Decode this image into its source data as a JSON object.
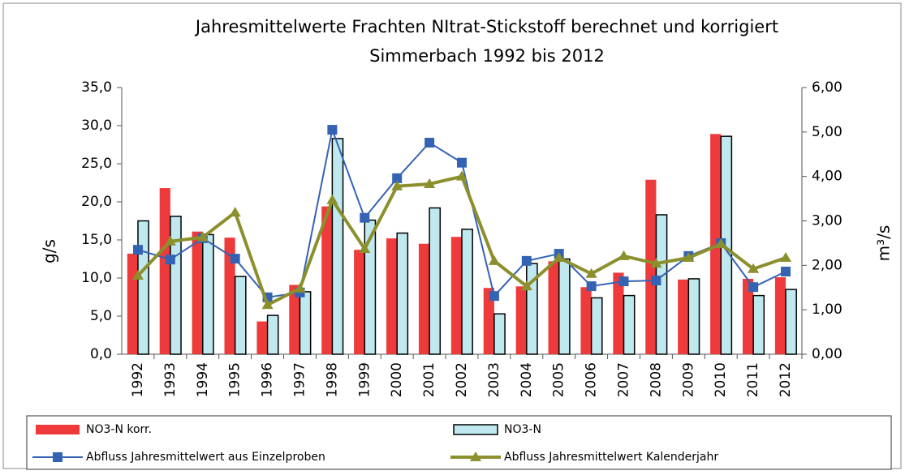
{
  "chart_data": {
    "type": "bar-line",
    "title": [
      "Jahresmittelwerte Frachten NItrat-Stickstoff berechnet und korrigiert",
      "Simmerbach 1992 bis 2012"
    ],
    "ylabel": "g/s",
    "y2label": "m³/s",
    "categories": [
      "1992",
      "1993",
      "1994",
      "1995",
      "1996",
      "1997",
      "1998",
      "1999",
      "2000",
      "2001",
      "2002",
      "2003",
      "2004",
      "2005",
      "2006",
      "2007",
      "2008",
      "2009",
      "2010",
      "2011",
      "2012"
    ],
    "series": [
      {
        "name": "NO3-N korr.",
        "kind": "bar",
        "color": "#ee3a3a",
        "values": [
          13.2,
          21.8,
          16.1,
          15.3,
          4.3,
          9.1,
          19.4,
          13.7,
          15.2,
          14.5,
          15.4,
          8.7,
          8.9,
          12.2,
          8.8,
          10.7,
          22.9,
          9.8,
          28.9,
          9.9,
          10.1
        ]
      },
      {
        "name": "NO3-N",
        "kind": "bar",
        "color": "#bfe9ee",
        "values": [
          17.5,
          18.1,
          15.7,
          10.2,
          5.1,
          8.2,
          28.3,
          17.6,
          15.9,
          19.2,
          16.4,
          5.3,
          11.9,
          12.5,
          7.4,
          7.7,
          18.3,
          9.9,
          28.6,
          7.7,
          8.5
        ]
      },
      {
        "name": "Abfluss Jahresmittelwert aus Einzelproben",
        "kind": "line",
        "marker": "square",
        "axis": "y2",
        "color": "#3463b4",
        "values": [
          2.35,
          2.13,
          2.61,
          2.15,
          1.28,
          1.39,
          5.05,
          3.07,
          3.96,
          4.76,
          4.31,
          1.31,
          2.1,
          2.26,
          1.53,
          1.64,
          1.66,
          2.21,
          2.5,
          1.51,
          1.86
        ]
      },
      {
        "name": "Abfluss Jahresmittelwert Kalenderjahr",
        "kind": "line",
        "marker": "triangle",
        "axis": "y2",
        "color": "#8b8f2c",
        "values": [
          1.77,
          2.54,
          2.63,
          3.19,
          1.11,
          1.48,
          3.47,
          2.37,
          3.78,
          3.83,
          4.0,
          2.1,
          1.53,
          2.17,
          1.81,
          2.21,
          2.04,
          2.17,
          2.48,
          1.92,
          2.17
        ]
      }
    ],
    "ylim": [
      0,
      35
    ],
    "yticks": [
      {
        "value": 0,
        "label": "0,0"
      },
      {
        "value": 5,
        "label": "5,0"
      },
      {
        "value": 10,
        "label": "10,0"
      },
      {
        "value": 15,
        "label": "15,0"
      },
      {
        "value": 20,
        "label": "20,0"
      },
      {
        "value": 25,
        "label": "25,0"
      },
      {
        "value": 30,
        "label": "30,0"
      },
      {
        "value": 35,
        "label": "35,0"
      }
    ],
    "y2lim": [
      0,
      6
    ],
    "y2ticks": [
      {
        "value": 0,
        "label": "0,00"
      },
      {
        "value": 1,
        "label": "1,00"
      },
      {
        "value": 2,
        "label": "2,00"
      },
      {
        "value": 3,
        "label": "3,00"
      },
      {
        "value": 4,
        "label": "4,00"
      },
      {
        "value": 5,
        "label": "5,00"
      },
      {
        "value": 6,
        "label": "6,00"
      }
    ],
    "grid": false,
    "legend": "bottom"
  }
}
